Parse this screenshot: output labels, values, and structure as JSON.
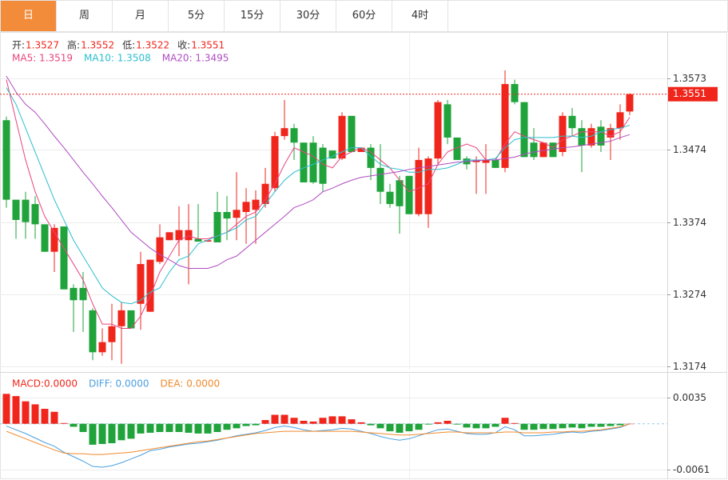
{
  "tabs": [
    "日",
    "周",
    "月",
    "5分",
    "15分",
    "30分",
    "60分",
    "4时"
  ],
  "active_tab": 0,
  "chart_data": [
    {
      "type": "candlestick",
      "info": [
        {
          "label": "开:",
          "value": "1.3527"
        },
        {
          "label": "高:",
          "value": "1.3552"
        },
        {
          "label": "低:",
          "value": "1.3522"
        },
        {
          "label": "收:",
          "value": "1.3551"
        }
      ],
      "up_color": "#f0261c",
      "down_color": "#1fa33a",
      "open": [
        1.3515,
        1.3405,
        1.3405,
        1.3399,
        1.3371,
        1.3333,
        1.3368,
        1.3283,
        1.3283,
        1.3252,
        1.3194,
        1.3208,
        1.323,
        1.3252,
        1.3261,
        1.325,
        1.3319,
        1.3349,
        1.3349,
        1.3349,
        1.3351,
        1.3347,
        1.3388,
        1.3388,
        1.338,
        1.3388,
        1.3391,
        1.3399,
        1.3421,
        1.3493,
        1.3504,
        1.3484,
        1.3484,
        1.3477,
        1.3473,
        1.3462,
        1.3521,
        1.3471,
        1.3477,
        1.3449,
        1.3416,
        1.3432,
        1.3438,
        1.3385,
        1.3385,
        1.3462,
        1.3537,
        1.3491,
        1.3462,
        1.3457,
        1.3456,
        1.346,
        1.3449,
        1.3565,
        1.354,
        1.3484,
        1.3464,
        1.3484,
        1.3471,
        1.3521,
        1.3504,
        1.348,
        1.3506,
        1.3491,
        1.3504,
        1.3527
      ],
      "high": [
        1.352,
        1.3405,
        1.3416,
        1.341,
        1.3371,
        1.3371,
        1.3368,
        1.3288,
        1.3305,
        1.3255,
        1.3227,
        1.3261,
        1.3263,
        1.3252,
        1.3333,
        1.3322,
        1.3371,
        1.336,
        1.3396,
        1.3399,
        1.3399,
        1.3349,
        1.3416,
        1.341,
        1.3443,
        1.3421,
        1.3418,
        1.3449,
        1.3499,
        1.3543,
        1.351,
        1.3484,
        1.3493,
        1.3482,
        1.3473,
        1.3526,
        1.3521,
        1.3477,
        1.3482,
        1.3482,
        1.3427,
        1.3438,
        1.3438,
        1.3477,
        1.3465,
        1.3543,
        1.3543,
        1.3491,
        1.3465,
        1.3465,
        1.3482,
        1.346,
        1.3584,
        1.3571,
        1.354,
        1.3504,
        1.3484,
        1.3484,
        1.3526,
        1.3532,
        1.3515,
        1.351,
        1.3515,
        1.351,
        1.3537,
        1.3552
      ],
      "low": [
        1.3394,
        1.3351,
        1.3351,
        1.3351,
        1.3333,
        1.3305,
        1.3281,
        1.3222,
        1.3222,
        1.3183,
        1.3189,
        1.3183,
        1.3178,
        1.3227,
        1.3225,
        1.325,
        1.3316,
        1.3349,
        1.3327,
        1.3288,
        1.3347,
        1.3347,
        1.3346,
        1.3349,
        1.3349,
        1.3344,
        1.3344,
        1.3394,
        1.3416,
        1.3488,
        1.346,
        1.3429,
        1.3427,
        1.3416,
        1.3462,
        1.346,
        1.3471,
        1.3471,
        1.3432,
        1.3399,
        1.3394,
        1.3358,
        1.3385,
        1.3382,
        1.3366,
        1.3454,
        1.3482,
        1.346,
        1.3447,
        1.3413,
        1.3413,
        1.3449,
        1.3443,
        1.3537,
        1.3464,
        1.346,
        1.3464,
        1.3464,
        1.3465,
        1.3493,
        1.3443,
        1.3477,
        1.3471,
        1.346,
        1.3488,
        1.3522
      ],
      "close": [
        1.3405,
        1.3377,
        1.3374,
        1.3371,
        1.3333,
        1.3366,
        1.3281,
        1.3266,
        1.3266,
        1.3194,
        1.3208,
        1.323,
        1.3252,
        1.3227,
        1.3316,
        1.3322,
        1.3353,
        1.336,
        1.3363,
        1.3363,
        1.3347,
        1.3349,
        1.3346,
        1.3379,
        1.3391,
        1.3402,
        1.3405,
        1.3427,
        1.3493,
        1.3504,
        1.3484,
        1.3429,
        1.3429,
        1.3427,
        1.3462,
        1.3521,
        1.3471,
        1.3477,
        1.3449,
        1.3416,
        1.3399,
        1.3396,
        1.3385,
        1.346,
        1.3462,
        1.354,
        1.3491,
        1.346,
        1.3454,
        1.346,
        1.346,
        1.3449,
        1.3565,
        1.354,
        1.3464,
        1.3464,
        1.3484,
        1.3464,
        1.3521,
        1.3504,
        1.348,
        1.3504,
        1.348,
        1.3504,
        1.3526,
        1.3551
      ],
      "series": [
        {
          "legend": "MA5: 1.3519",
          "color": "#e8457f",
          "values": [
            1.3571,
            1.3515,
            1.346,
            1.3416,
            1.3382,
            1.336,
            1.3338,
            1.3316,
            1.3294,
            1.3261,
            1.3233,
            1.3233,
            1.3227,
            1.3227,
            1.3244,
            1.3272,
            1.3305,
            1.3327,
            1.3349,
            1.3355,
            1.3351,
            1.3351,
            1.3355,
            1.336,
            1.3371,
            1.3382,
            1.3388,
            1.3405,
            1.3427,
            1.3454,
            1.3477,
            1.3471,
            1.3465,
            1.3454,
            1.3449,
            1.3465,
            1.3471,
            1.3477,
            1.3471,
            1.346,
            1.3449,
            1.3432,
            1.3416,
            1.3421,
            1.3427,
            1.3454,
            1.3471,
            1.3477,
            1.3482,
            1.3477,
            1.346,
            1.346,
            1.3482,
            1.3499,
            1.3493,
            1.3488,
            1.3484,
            1.3477,
            1.3488,
            1.3493,
            1.3499,
            1.3499,
            1.3499,
            1.3493,
            1.3499,
            1.3519
          ]
        },
        {
          "legend": "MA10: 1.3508",
          "color": "#2bbfcf",
          "values": [
            1.356,
            1.3537,
            1.3504,
            1.3471,
            1.3438,
            1.3405,
            1.3377,
            1.3349,
            1.3327,
            1.3305,
            1.3283,
            1.3272,
            1.3263,
            1.3261,
            1.3266,
            1.3277,
            1.3283,
            1.3305,
            1.3322,
            1.3327,
            1.3344,
            1.3349,
            1.3355,
            1.336,
            1.3366,
            1.3377,
            1.3382,
            1.3399,
            1.3416,
            1.3432,
            1.3443,
            1.3449,
            1.3454,
            1.346,
            1.3465,
            1.3471,
            1.3477,
            1.3477,
            1.3465,
            1.3454,
            1.3449,
            1.3447,
            1.3443,
            1.3443,
            1.3447,
            1.3447,
            1.3449,
            1.3454,
            1.346,
            1.346,
            1.346,
            1.3462,
            1.3477,
            1.3488,
            1.3491,
            1.3491,
            1.3491,
            1.3491,
            1.3493,
            1.3493,
            1.3491,
            1.3493,
            1.3499,
            1.3502,
            1.3504,
            1.3508
          ]
        },
        {
          "legend": "MA20: 1.3495",
          "color": "#b04cc2",
          "values": [
            1.3576,
            1.3554,
            1.3537,
            1.3526,
            1.351,
            1.3493,
            1.3477,
            1.346,
            1.3443,
            1.3427,
            1.341,
            1.3394,
            1.3377,
            1.336,
            1.3349,
            1.3338,
            1.3329,
            1.3322,
            1.3314,
            1.331,
            1.331,
            1.331,
            1.3314,
            1.3322,
            1.3327,
            1.3338,
            1.3349,
            1.336,
            1.3371,
            1.3382,
            1.3394,
            1.3399,
            1.3405,
            1.3416,
            1.3421,
            1.3427,
            1.3432,
            1.3436,
            1.3438,
            1.344,
            1.3442,
            1.3444,
            1.3447,
            1.3449,
            1.3451,
            1.3453,
            1.3455,
            1.3457,
            1.3458,
            1.3459,
            1.346,
            1.346,
            1.3462,
            1.3464,
            1.3468,
            1.3471,
            1.3473,
            1.3475,
            1.3477,
            1.3478,
            1.348,
            1.3482,
            1.3484,
            1.3486,
            1.3491,
            1.3495
          ]
        }
      ],
      "ylim": [
        1.317,
        1.3637
      ],
      "yticks": [
        1.3174,
        1.3274,
        1.3374,
        1.3474,
        1.3573
      ],
      "grid": true
    },
    {
      "type": "macd",
      "up_color": "#f0261c",
      "down_color": "#1fa33a",
      "series": [
        {
          "legend": "MACD:0.0000",
          "color": "#f0261c",
          "style": "histogram",
          "values": [
            0.004,
            0.0037,
            0.003,
            0.0026,
            0.002,
            0.0016,
            0.0001,
            -0.0004,
            -0.0011,
            -0.0028,
            -0.0027,
            -0.0026,
            -0.0022,
            -0.002,
            -0.0013,
            -0.0012,
            -0.0011,
            -0.0011,
            -0.0011,
            -0.0012,
            -0.0013,
            -0.0013,
            -0.0011,
            -0.0008,
            -0.0006,
            -0.0003,
            -0.0002,
            0.0005,
            0.0012,
            0.0012,
            0.0008,
            0.0004,
            0.0003,
            0.0008,
            0.001,
            0.001,
            0.0006,
            0.0002,
            -0.0002,
            -0.0006,
            -0.001,
            -0.0012,
            -0.001,
            -0.0008,
            -0.0001,
            0.0002,
            0.0004,
            -0.0001,
            -0.0005,
            -0.0006,
            -0.0006,
            -0.0004,
            0.0008,
            0.0001,
            -0.0008,
            -0.0008,
            -0.0007,
            -0.0007,
            -0.0006,
            -0.0005,
            -0.0006,
            -0.0004,
            -0.0004,
            -0.0003,
            -0.0002,
            0
          ]
        },
        {
          "legend": "DIFF: 0.0000",
          "color": "#4a9fe0",
          "style": "line",
          "values": [
            -0.0003,
            -0.0008,
            -0.0013,
            -0.0019,
            -0.0025,
            -0.003,
            -0.0038,
            -0.0044,
            -0.005,
            -0.0057,
            -0.0058,
            -0.0056,
            -0.0052,
            -0.0047,
            -0.0042,
            -0.0036,
            -0.0034,
            -0.0031,
            -0.0029,
            -0.0027,
            -0.0026,
            -0.0024,
            -0.0022,
            -0.0019,
            -0.0016,
            -0.0014,
            -0.0012,
            -0.0009,
            -0.0005,
            -0.0003,
            -0.0005,
            -0.0008,
            -0.001,
            -0.0009,
            -0.0008,
            -0.0006,
            -0.0007,
            -0.001,
            -0.0013,
            -0.0017,
            -0.002,
            -0.0022,
            -0.002,
            -0.0016,
            -0.0012,
            -0.0008,
            -0.0007,
            -0.001,
            -0.0013,
            -0.0014,
            -0.0014,
            -0.0012,
            -0.0004,
            -0.0008,
            -0.0016,
            -0.0016,
            -0.0015,
            -0.0014,
            -0.0012,
            -0.0011,
            -0.0012,
            -0.001,
            -0.0009,
            -0.0007,
            -0.0005,
            0
          ]
        },
        {
          "legend": "DEA: 0.0000",
          "color": "#f08a2c",
          "style": "line",
          "values": [
            -0.001,
            -0.0015,
            -0.002,
            -0.0025,
            -0.003,
            -0.0035,
            -0.0039,
            -0.004,
            -0.004,
            -0.0041,
            -0.0041,
            -0.004,
            -0.0039,
            -0.0038,
            -0.0036,
            -0.0034,
            -0.0032,
            -0.003,
            -0.0028,
            -0.0026,
            -0.0024,
            -0.0023,
            -0.0021,
            -0.0019,
            -0.0017,
            -0.0015,
            -0.0013,
            -0.0012,
            -0.0011,
            -0.001,
            -0.001,
            -0.001,
            -0.001,
            -0.001,
            -0.001,
            -0.001,
            -0.001,
            -0.0011,
            -0.0012,
            -0.0013,
            -0.0014,
            -0.0015,
            -0.0015,
            -0.0014,
            -0.0013,
            -0.0012,
            -0.0011,
            -0.0011,
            -0.0012,
            -0.0012,
            -0.0012,
            -0.0012,
            -0.0011,
            -0.0011,
            -0.0012,
            -0.0012,
            -0.0012,
            -0.0011,
            -0.0011,
            -0.001,
            -0.001,
            -0.0009,
            -0.0008,
            -0.0006,
            -0.0004,
            0
          ]
        }
      ],
      "ylim": [
        -0.0073,
        0.0066
      ],
      "yticks": [
        -0.0061,
        0.0035
      ],
      "grid": true
    }
  ]
}
